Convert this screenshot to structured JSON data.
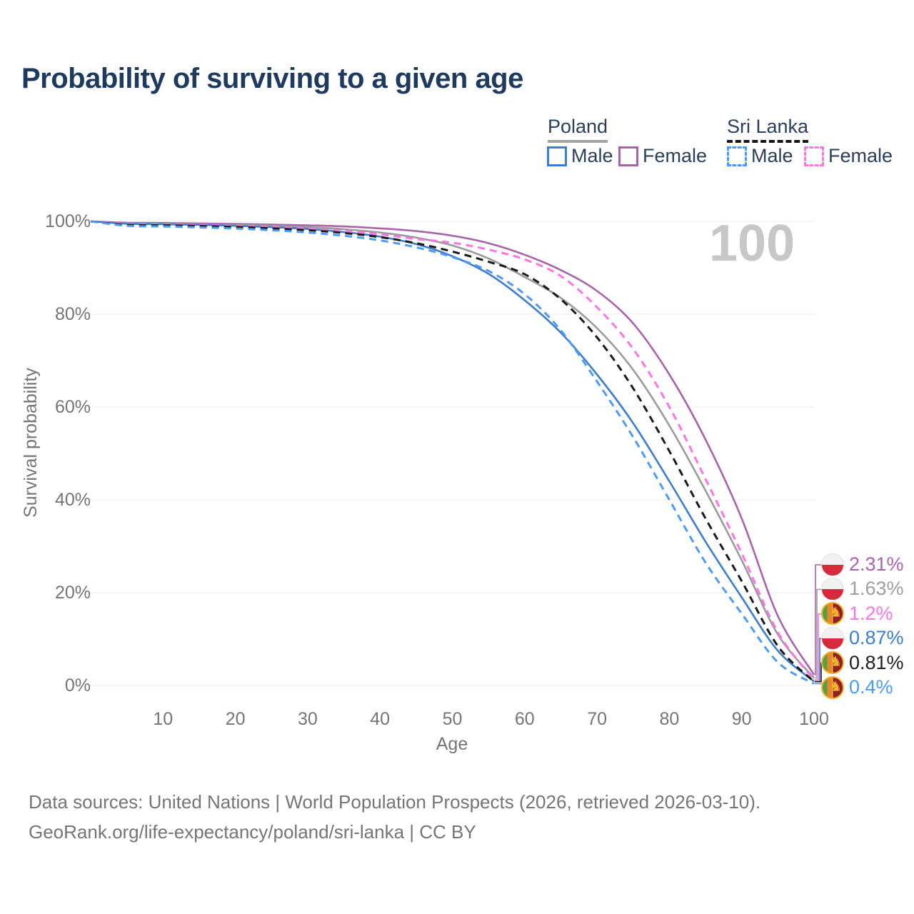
{
  "title": "Probability of surviving to a given age",
  "watermark": "100",
  "legend": {
    "groups": [
      {
        "label": "Poland",
        "line_style": "solid",
        "line_color": "#9b9b9b",
        "items": [
          {
            "label": "Male",
            "color": "#3e7dcb",
            "dashed": false
          },
          {
            "label": "Female",
            "color": "#a864ab",
            "dashed": false
          }
        ]
      },
      {
        "label": "Sri Lanka",
        "line_style": "dashed",
        "line_color": "#161616",
        "items": [
          {
            "label": "Male",
            "color": "#4d9bf5",
            "dashed": true
          },
          {
            "label": "Female",
            "color": "#fb75e4",
            "dashed": true
          }
        ]
      }
    ]
  },
  "chart_data": {
    "type": "line",
    "title": "Probability of surviving to a given age",
    "xlabel": "Age",
    "ylabel": "Survival probability",
    "xlim": [
      0,
      100
    ],
    "ylim": [
      0,
      100
    ],
    "grid": "horizontal",
    "x_ticks": [
      10,
      20,
      30,
      40,
      50,
      60,
      70,
      80,
      90,
      100
    ],
    "y_tick_values": [
      0,
      20,
      40,
      60,
      80,
      100
    ],
    "y_tick_labels": [
      "0%",
      "20%",
      "40%",
      "60%",
      "80%",
      "100%"
    ],
    "x": [
      0,
      5,
      10,
      15,
      20,
      25,
      30,
      35,
      40,
      45,
      50,
      55,
      60,
      65,
      70,
      75,
      80,
      85,
      90,
      95,
      100
    ],
    "series": [
      {
        "name": "Poland Female",
        "country": "Poland",
        "sex": "Female",
        "color": "#a864ab",
        "dashed": false,
        "values": [
          100,
          99.7,
          99.65,
          99.55,
          99.45,
          99.3,
          99.15,
          98.9,
          98.5,
          97.9,
          96.9,
          95.3,
          92.8,
          89.5,
          85,
          78,
          67,
          53,
          36,
          15,
          2.31
        ]
      },
      {
        "name": "Poland",
        "country": "Poland",
        "sex": "Both",
        "color": "#9b9b9b",
        "dashed": false,
        "values": [
          100,
          99.6,
          99.5,
          99.4,
          99.25,
          99.05,
          98.75,
          98.3,
          97.6,
          96.5,
          94.8,
          92,
          88,
          83.5,
          77,
          68,
          56,
          42,
          27,
          11,
          1.63
        ]
      },
      {
        "name": "Poland Male",
        "country": "Poland",
        "sex": "Male",
        "color": "#3e7dcb",
        "dashed": false,
        "values": [
          100,
          99.5,
          99.4,
          99.25,
          99.05,
          98.75,
          98.35,
          97.7,
          96.7,
          95.1,
          92.5,
          88.7,
          83,
          76,
          67,
          56.5,
          44,
          31,
          19,
          7.5,
          0.87
        ]
      },
      {
        "name": "Sri Lanka Female",
        "country": "Sri Lanka",
        "sex": "Female",
        "color": "#fb75e4",
        "dashed": true,
        "values": [
          100,
          99.4,
          99.3,
          99.15,
          99.0,
          98.75,
          98.4,
          97.9,
          97.2,
          96.2,
          95.4,
          93.9,
          91.8,
          88.2,
          81.5,
          72.5,
          60,
          44.5,
          28.5,
          11.5,
          1.2
        ]
      },
      {
        "name": "Sri Lanka",
        "country": "Sri Lanka",
        "sex": "Both",
        "color": "#1a1a1a",
        "dashed": true,
        "values": [
          100,
          99.25,
          99.15,
          99,
          98.8,
          98.5,
          98.1,
          97.5,
          96.6,
          95.3,
          93.5,
          91.3,
          88.6,
          83.2,
          75,
          64,
          50.5,
          36,
          22.5,
          8.5,
          0.81
        ]
      },
      {
        "name": "Sri Lanka Male",
        "country": "Sri Lanka",
        "sex": "Male",
        "color": "#4d9bf5",
        "dashed": true,
        "values": [
          100,
          99.05,
          98.9,
          98.7,
          98.45,
          98.1,
          97.6,
          96.9,
          95.9,
          94.4,
          92.3,
          89.3,
          84.3,
          76.5,
          65.5,
          53.5,
          40,
          26.5,
          15.5,
          5,
          0.4
        ]
      }
    ],
    "end_labels": [
      {
        "label": "2.31%",
        "value": 2.31,
        "series": "Poland Female",
        "flag": "poland-flag-icon",
        "color": "#a864ab"
      },
      {
        "label": "1.63%",
        "value": 1.63,
        "series": "Poland",
        "flag": "poland-flag-icon",
        "color": "#9e9e9e"
      },
      {
        "label": "1.2%",
        "value": 1.2,
        "series": "Sri Lanka Female",
        "flag": "sri-lanka-flag-icon",
        "color": "#fb75e4"
      },
      {
        "label": "0.87%",
        "value": 0.87,
        "series": "Poland Male",
        "flag": "poland-flag-icon",
        "color": "#3e7dcb"
      },
      {
        "label": "0.81%",
        "value": 0.81,
        "series": "Sri Lanka",
        "flag": "sri-lanka-flag-icon",
        "color": "#1f1f1f"
      },
      {
        "label": "0.4%",
        "value": 0.4,
        "series": "Sri Lanka Male",
        "flag": "sri-lanka-flag-icon",
        "color": "#4d9bf5"
      }
    ],
    "legend_position": "top-right",
    "watermark": "100"
  },
  "footer": {
    "line1": "Data sources: United Nations | World Population Prospects (2026, retrieved 2026-03-10).",
    "line2": "GeoRank.org/life-expectancy/poland/sri-lanka | CC BY"
  },
  "colors": {
    "title_text": "#1f3a5f",
    "axis_text": "#757575",
    "gridline": "#ebebeb",
    "watermark": "#c7c7c7",
    "legend_text": "#2d3e5a"
  }
}
